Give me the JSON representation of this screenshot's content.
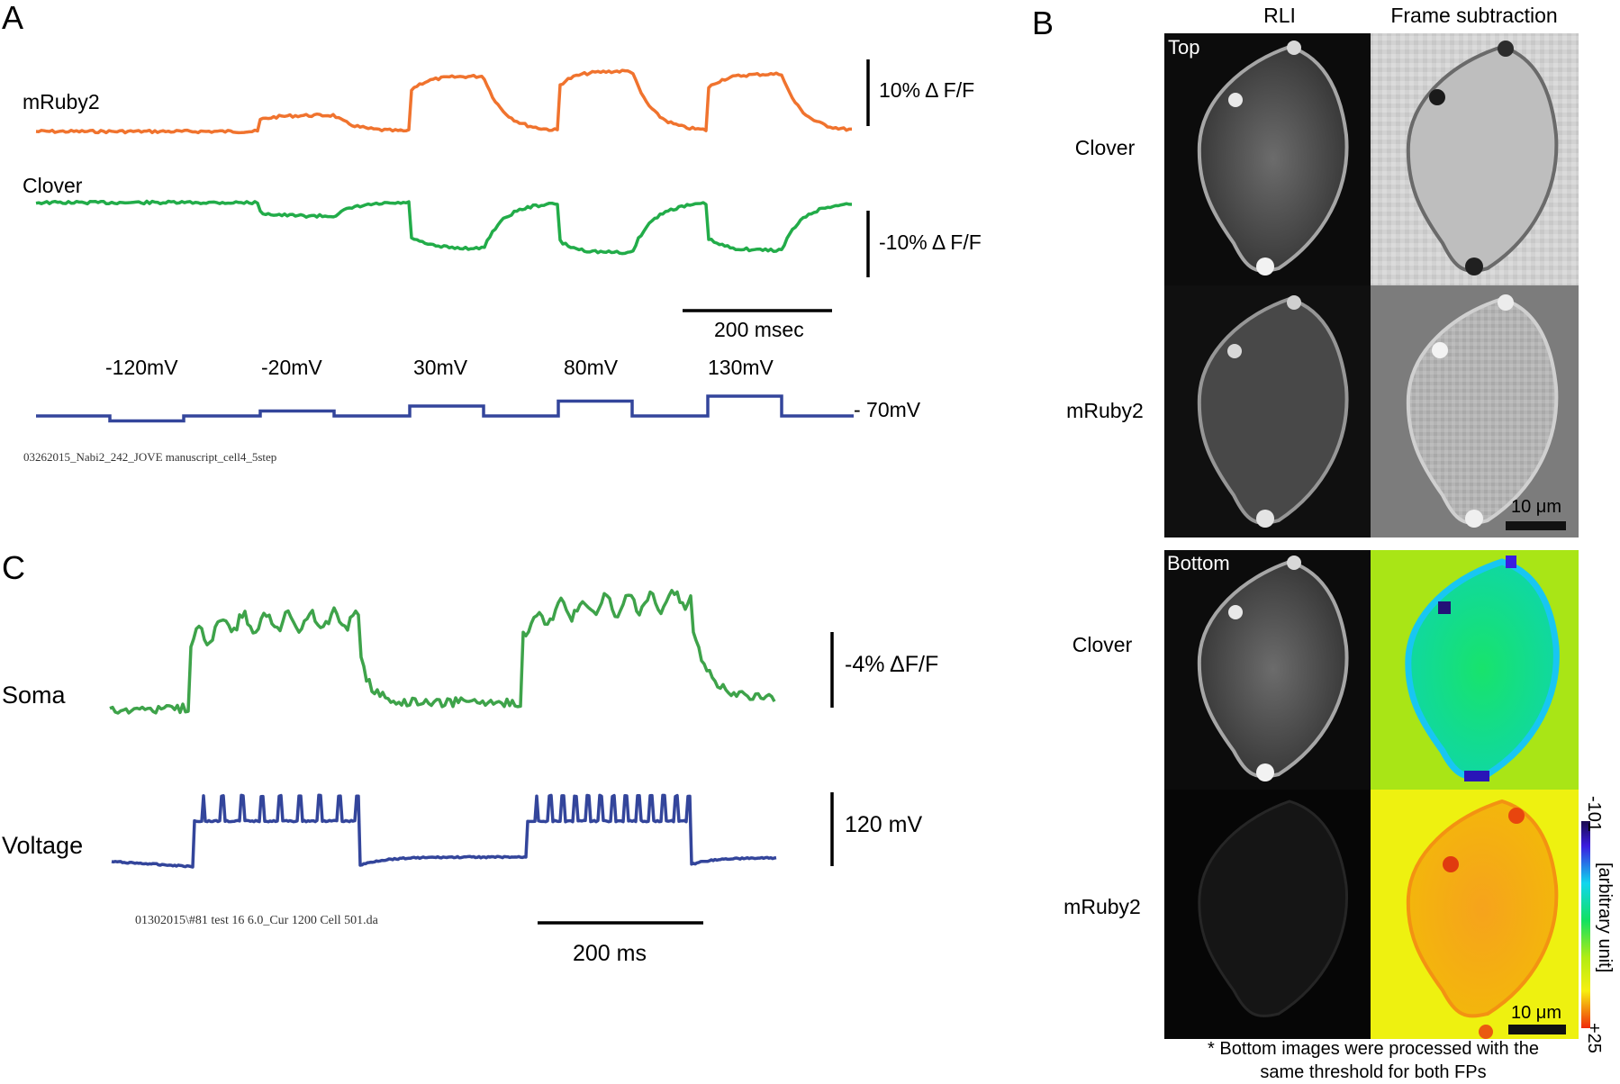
{
  "panelA": {
    "letter": "A",
    "traces": [
      {
        "name": "mRuby2",
        "color": "#f0732e",
        "segments": [
          [
            0,
            0
          ],
          [
            40,
            0.7
          ],
          [
            40,
            2.6
          ],
          [
            93,
            3.5
          ],
          [
            93,
            8
          ],
          [
            133,
            12
          ],
          [
            133,
            12
          ],
          [
            186,
            13.6
          ],
          [
            186,
            9
          ],
          [
            226,
            13
          ],
          [
            226,
            13
          ],
          [
            279,
            14
          ],
          [
            279,
            10
          ],
          [
            319,
            14
          ],
          [
            319,
            14
          ],
          [
            357,
            14.2
          ],
          [
            357,
            10
          ],
          [
            386,
            0.6
          ]
        ]
      },
      {
        "name": "Clover",
        "color": "#22ac49"
      }
    ],
    "scalebars": {
      "mruby": "10% Δ F/F",
      "clover": "-10% Δ F/F",
      "time": "200 msec"
    },
    "steps": [
      {
        "label": "-120mV",
        "mv": -120
      },
      {
        "label": "-20mV",
        "mv": -20
      },
      {
        "label": "30mV",
        "mv": 30
      },
      {
        "label": "80mV",
        "mv": 80
      },
      {
        "label": "130mV",
        "mv": 130
      }
    ],
    "holding": "- 70mV",
    "filename": "03262015_Nabi2_242_JOVE manuscript_cell4_5step",
    "voltage_color": "#33459b"
  },
  "panelB": {
    "letter": "B",
    "col_headers": [
      "RLI",
      "Frame subtraction"
    ],
    "top_label": "Top",
    "bottom_label": "Bottom",
    "row_labels": [
      "Clover",
      "mRuby2",
      "Clover",
      "mRuby2"
    ],
    "scalebar": "10 μm",
    "colorbar": {
      "min_label": "-101",
      "max_label": "+25",
      "unit": "[arbitrary unit]"
    },
    "footnote_line1": "* Bottom images were processed with the",
    "footnote_line2": "same threshold for both FPs"
  },
  "panelC": {
    "letter": "C",
    "soma_label": "Soma",
    "voltage_label": "Voltage",
    "soma_color": "#3ea34a",
    "voltage_color": "#33459b",
    "scalebars": {
      "soma": "-4% ΔF/F",
      "voltage": "120 mV",
      "time": "200 ms"
    },
    "filename": "01302015\\#81 test 16 6.0_Cur 1200 Cell 501.da"
  }
}
